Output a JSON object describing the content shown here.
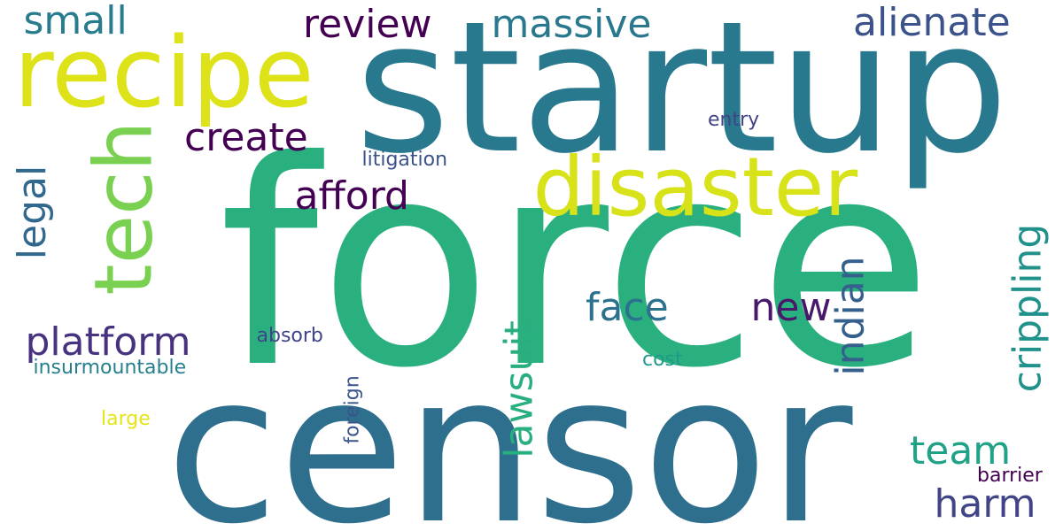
{
  "words": [
    {
      "id": "force",
      "text": "force",
      "color": "#2ab07f",
      "orientation": "horizontal"
    },
    {
      "id": "censor",
      "text": "censor",
      "color": "#2e6f8e",
      "orientation": "horizontal"
    },
    {
      "id": "startup",
      "text": "startup",
      "color": "#29798e",
      "orientation": "horizontal"
    },
    {
      "id": "recipe",
      "text": "recipe",
      "color": "#dde318",
      "orientation": "horizontal"
    },
    {
      "id": "disaster",
      "text": "disaster",
      "color": "#d8e219",
      "orientation": "horizontal"
    },
    {
      "id": "tech",
      "text": "tech",
      "color": "#7ad151",
      "orientation": "vertical"
    },
    {
      "id": "small",
      "text": "small",
      "color": "#287c8e",
      "orientation": "horizontal"
    },
    {
      "id": "review",
      "text": "review",
      "color": "#440154",
      "orientation": "horizontal"
    },
    {
      "id": "massive",
      "text": "massive",
      "color": "#2a788e",
      "orientation": "horizontal"
    },
    {
      "id": "alienate",
      "text": "alienate",
      "color": "#3b528b",
      "orientation": "horizontal"
    },
    {
      "id": "create",
      "text": "create",
      "color": "#440154",
      "orientation": "horizontal"
    },
    {
      "id": "entry",
      "text": "entry",
      "color": "#404387",
      "orientation": "horizontal"
    },
    {
      "id": "litigation",
      "text": "litigation",
      "color": "#3b528b",
      "orientation": "horizontal"
    },
    {
      "id": "afford",
      "text": "afford",
      "color": "#440154",
      "orientation": "horizontal"
    },
    {
      "id": "legal",
      "text": "legal",
      "color": "#31688e",
      "orientation": "vertical"
    },
    {
      "id": "crippling",
      "text": "crippling",
      "color": "#21918c",
      "orientation": "vertical"
    },
    {
      "id": "indian",
      "text": "indian",
      "color": "#35608d",
      "orientation": "vertical"
    },
    {
      "id": "face",
      "text": "face",
      "color": "#2c728e",
      "orientation": "horizontal"
    },
    {
      "id": "new",
      "text": "new",
      "color": "#48186a",
      "orientation": "horizontal"
    },
    {
      "id": "lawsuit",
      "text": "lawsuit",
      "color": "#29af7f",
      "orientation": "vertical"
    },
    {
      "id": "platform",
      "text": "platform",
      "color": "#46327e",
      "orientation": "horizontal"
    },
    {
      "id": "absorb",
      "text": "absorb",
      "color": "#404387",
      "orientation": "horizontal"
    },
    {
      "id": "insurmountable",
      "text": "insurmountable",
      "color": "#277f8e",
      "orientation": "horizontal"
    },
    {
      "id": "cost",
      "text": "cost",
      "color": "#1f9a8a",
      "orientation": "horizontal"
    },
    {
      "id": "foreign",
      "text": "foreign",
      "color": "#39568c",
      "orientation": "vertical"
    },
    {
      "id": "large",
      "text": "large",
      "color": "#e5e419",
      "orientation": "horizontal"
    },
    {
      "id": "team",
      "text": "team",
      "color": "#1fa287",
      "orientation": "horizontal"
    },
    {
      "id": "barrier",
      "text": "barrier",
      "color": "#440154",
      "orientation": "horizontal"
    },
    {
      "id": "harm",
      "text": "harm",
      "color": "#414487",
      "orientation": "horizontal"
    }
  ]
}
